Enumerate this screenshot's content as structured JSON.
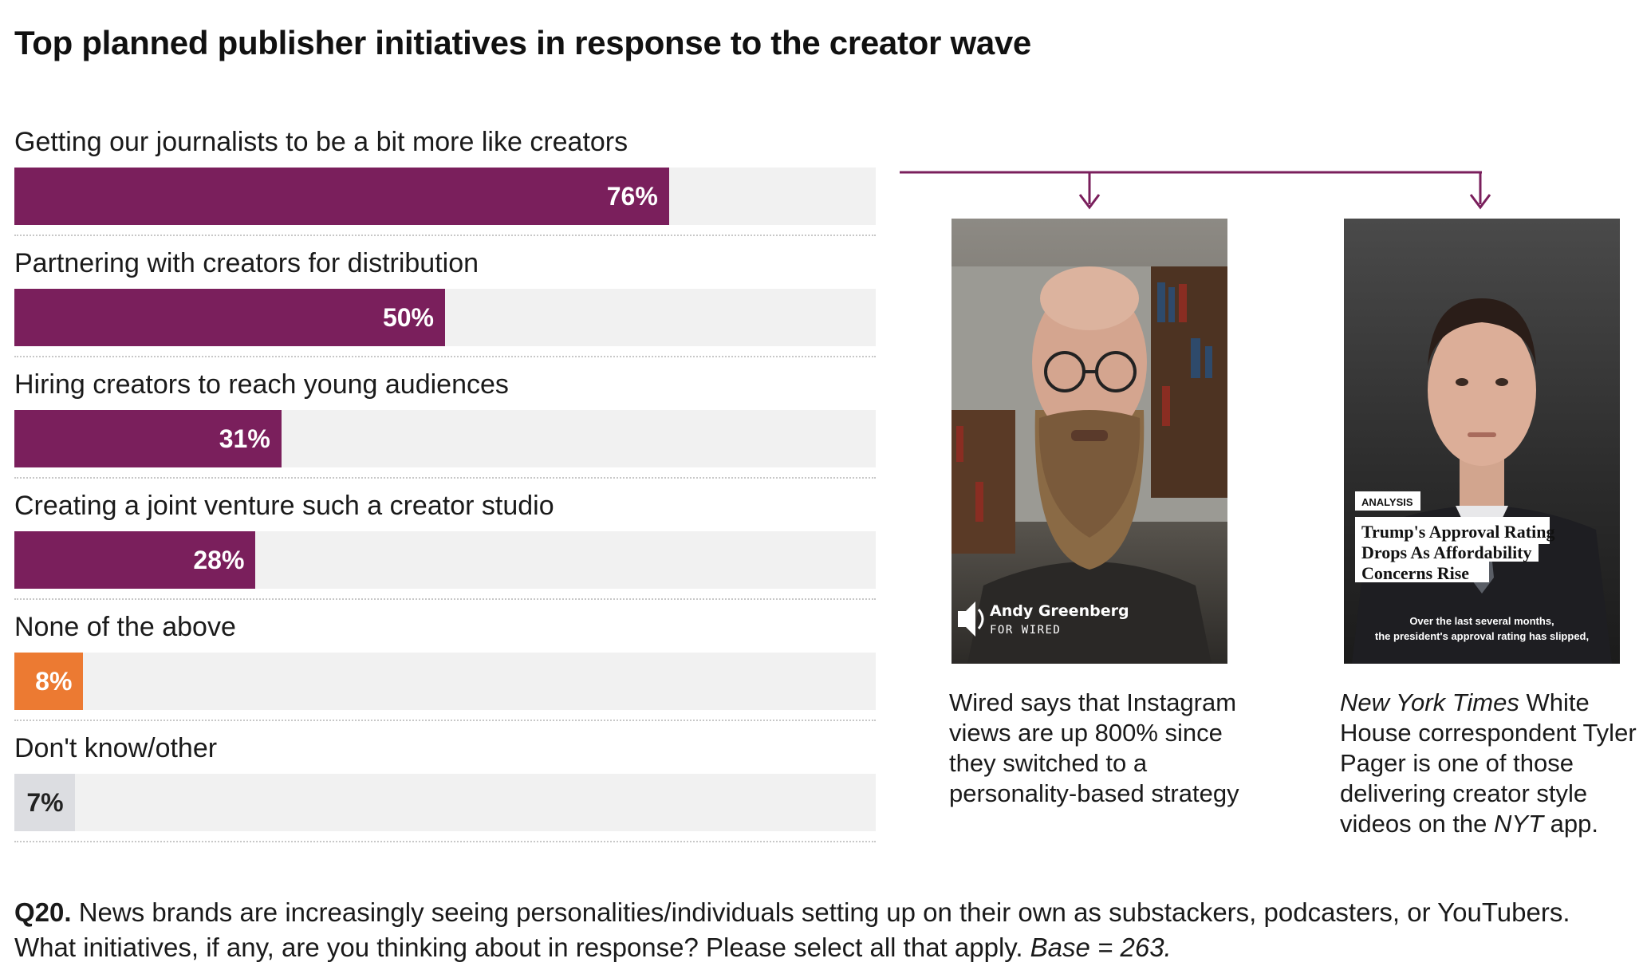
{
  "title": "Top planned publisher initiatives in response to the creator wave",
  "colors": {
    "purple": "#7a1f5c",
    "orange": "#ec7a32",
    "grey": "#dcdde1",
    "track": "#f1f1f1"
  },
  "chart_data": {
    "type": "bar",
    "orientation": "horizontal",
    "title": "Top planned publisher initiatives in response to the creator wave",
    "xlim": [
      0,
      100
    ],
    "categories": [
      "Getting our journalists to be a bit more like creators",
      "Partnering with creators for distribution",
      "Hiring creators to reach young audiences",
      "Creating a joint venture such a creator studio",
      "None of the above",
      "Don't know/other"
    ],
    "values": [
      76,
      50,
      31,
      28,
      8,
      7
    ],
    "value_labels": [
      "76%",
      "50%",
      "31%",
      "28%",
      "8%",
      "7%"
    ],
    "bar_colors": [
      "#7a1f5c",
      "#7a1f5c",
      "#7a1f5c",
      "#7a1f5c",
      "#ec7a32",
      "#dcdde1"
    ],
    "label_colors": [
      "#ffffff",
      "#ffffff",
      "#ffffff",
      "#ffffff",
      "#ffffff",
      "#222222"
    ]
  },
  "examples": [
    {
      "id": "wired",
      "overlay_name": "Andy Greenberg",
      "overlay_sub": "FOR WIRED",
      "caption": "Wired says that Instagram views are up 800% since they switched to a personality-based strategy"
    },
    {
      "id": "nyt",
      "badge": "ANALYSIS",
      "headline": [
        "Trump's Approval Rating",
        "Drops As Affordability",
        "Concerns Rise"
      ],
      "subtitle": [
        "Over the last several months,",
        "the president's approval rating has slipped,"
      ],
      "caption_italic_1": "New York Times",
      "caption_text_1": " White House correspondent Tyler Pager is one of those delivering creator style videos on the ",
      "caption_italic_2": "NYT",
      "caption_text_2": " app."
    }
  ],
  "footnote": {
    "q": "Q20.",
    "text": " News brands are increasingly seeing personalities/individuals setting up on their own as substackers, podcasters, or YouTubers. What initiatives, if any, are you thinking about in response? Please select all that apply. ",
    "base": "Base = 263."
  }
}
